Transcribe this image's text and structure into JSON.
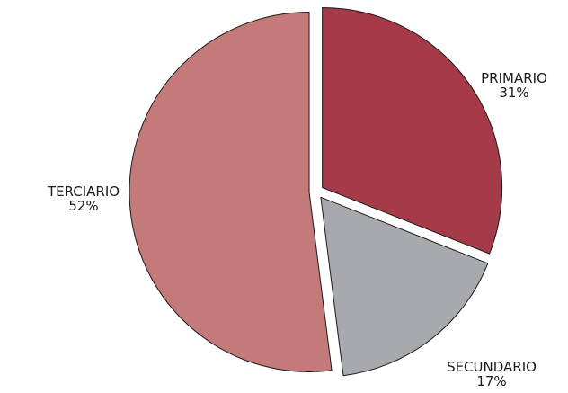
{
  "chart_data": {
    "type": "pie",
    "title": "",
    "slices": [
      {
        "label": "PRIMARIO",
        "value": 31,
        "value_label": "31%",
        "color": "#a53a48"
      },
      {
        "label": "SECUNDARIO",
        "value": 17,
        "value_label": "17%",
        "color": "#a8a9ad"
      },
      {
        "label": "TERCIARIO",
        "value": 52,
        "value_label": "52%",
        "color": "#c47a78"
      }
    ],
    "start_angle_deg": 0,
    "direction": "clockwise",
    "exploded": true,
    "legend": "none",
    "edge_color": "#1a1a1a"
  }
}
